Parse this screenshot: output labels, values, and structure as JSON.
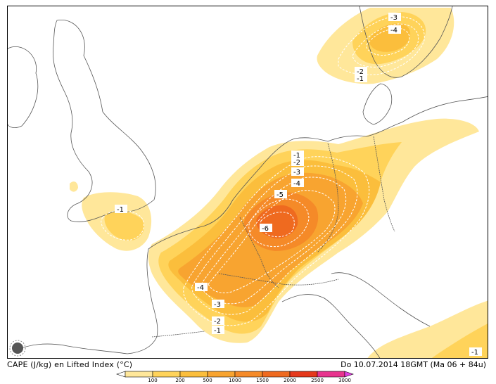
{
  "map": {
    "title_left": "CAPE (J/kg) en Lifted Index (°C)",
    "title_right": "Do 10.07.2014 18GMT (Ma 06 + 84u)",
    "logo_icon": "sun-logo-icon",
    "colors": {
      "c100": "#ffe79a",
      "c200": "#ffd35a",
      "c500": "#fbbe3c",
      "c1000": "#f8a430",
      "c1500": "#f58a28",
      "c2000": "#ef6a1f",
      "c2500": "#e5381b",
      "c3000": "#e8348e",
      "c3500": "#e040e0",
      "coast": "#555555",
      "contour": "#ffffff"
    },
    "lifted_index_labels": [
      {
        "text": "-3"
      },
      {
        "text": "-4"
      },
      {
        "text": "-2"
      },
      {
        "text": "-1"
      },
      {
        "text": "-1"
      },
      {
        "text": "-2"
      },
      {
        "text": "-3"
      },
      {
        "text": "-4"
      },
      {
        "text": "-5"
      },
      {
        "text": "-6"
      },
      {
        "text": "-1"
      },
      {
        "text": "-4"
      },
      {
        "text": "-3"
      },
      {
        "text": "-2"
      },
      {
        "text": "-1"
      },
      {
        "text": "-1"
      }
    ]
  },
  "legend": {
    "ticks": [
      "100",
      "200",
      "500",
      "1000",
      "1500",
      "2000",
      "2500",
      "3000"
    ]
  }
}
